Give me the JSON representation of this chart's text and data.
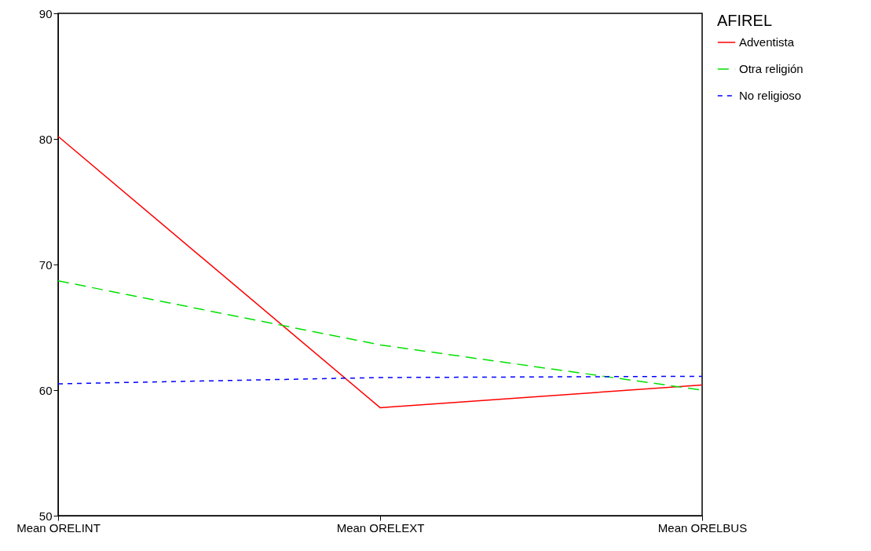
{
  "chart_data": {
    "type": "line",
    "categories": [
      "Mean ORELINT",
      "Mean ORELEXT",
      "Mean ORELBUS"
    ],
    "ylim": [
      50,
      90
    ],
    "yticks": [
      50,
      60,
      70,
      80,
      90
    ],
    "grid": false,
    "legend": "right",
    "legend_title": "AFIREL",
    "marker": "none",
    "series": [
      {
        "name": "Adventista",
        "color": "#ff0000",
        "line_style": "solid",
        "values": [
          80.2,
          58.6,
          60.4
        ]
      },
      {
        "name": "Otra religión",
        "color": "#00e000",
        "line_style": "dashed",
        "values": [
          68.7,
          63.6,
          60.0
        ]
      },
      {
        "name": "No religioso",
        "color": "#0000ff",
        "line_style": "dotted",
        "values": [
          60.5,
          61.0,
          61.1
        ]
      }
    ]
  }
}
